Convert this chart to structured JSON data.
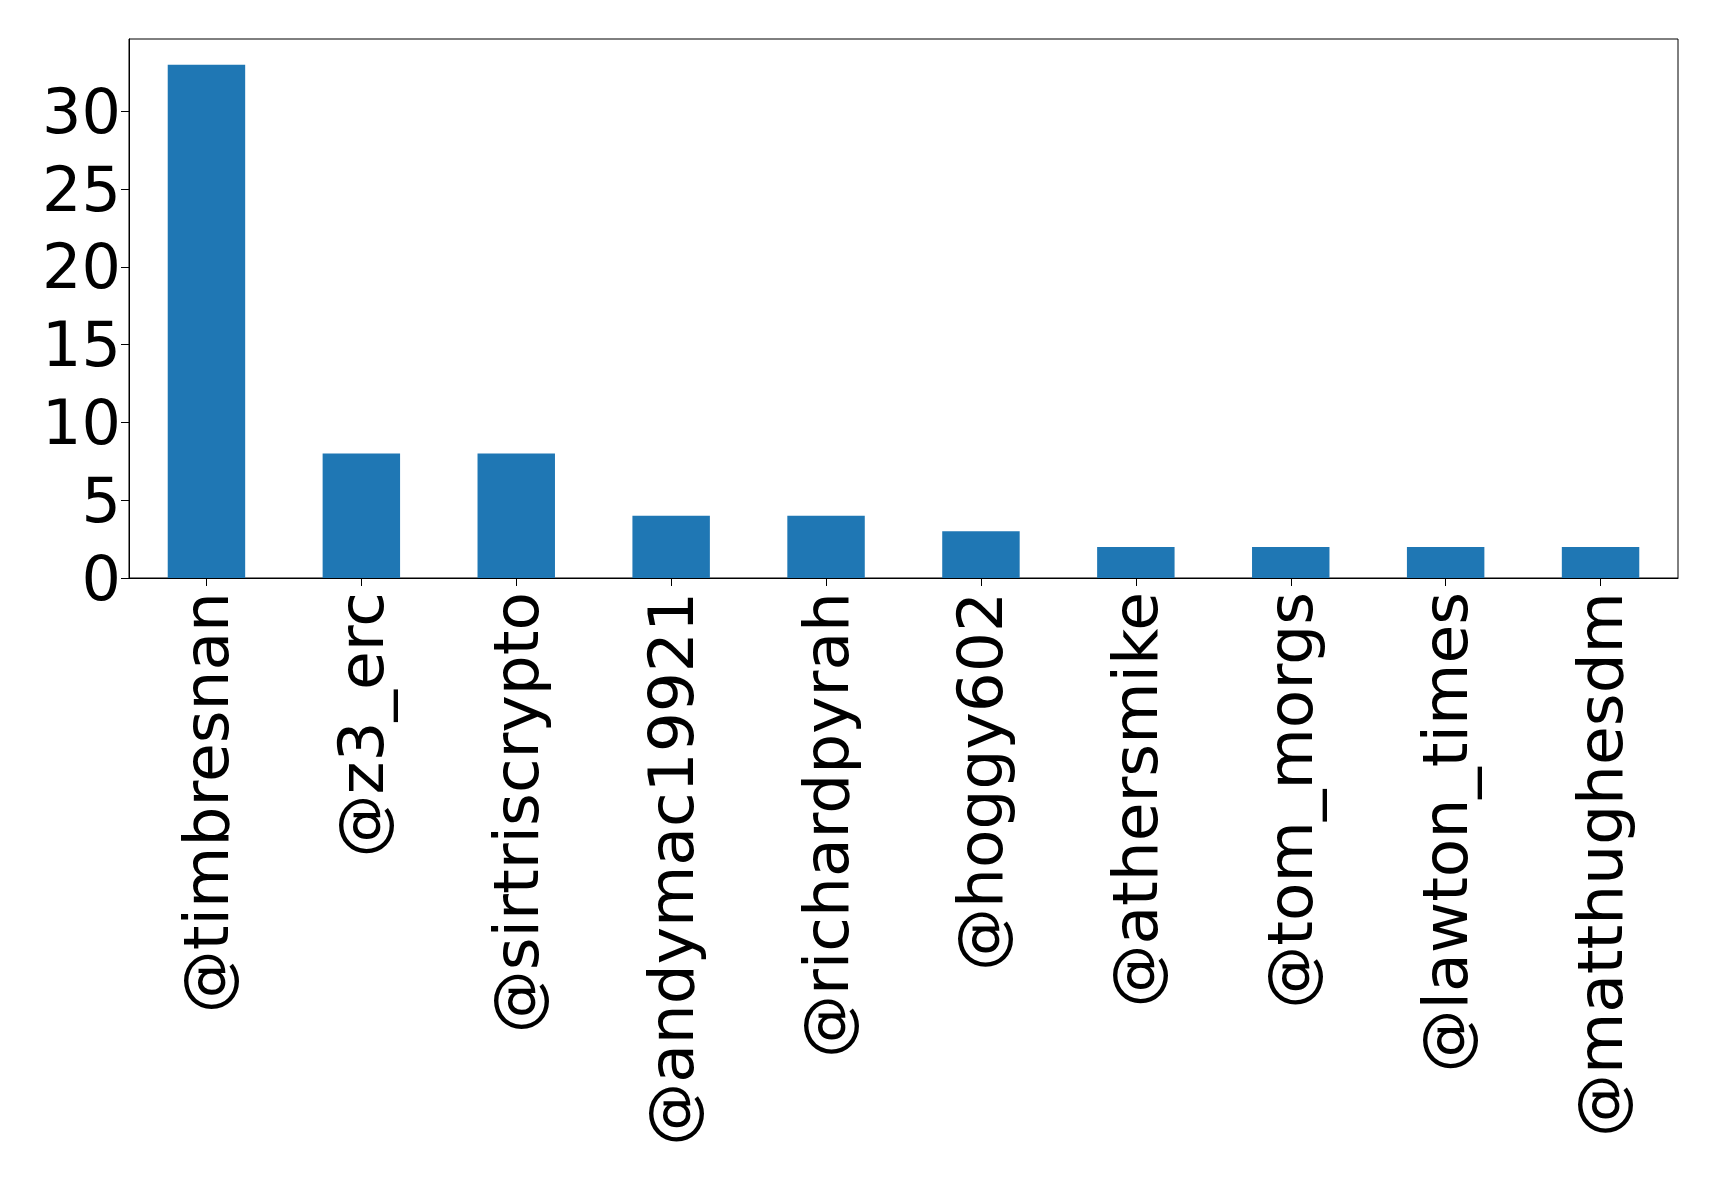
{
  "chart_data": {
    "type": "bar",
    "categories": [
      "@timbresnan",
      "@z3_erc",
      "@sirtriscrypto",
      "@andymac19921",
      "@richardpyrah",
      "@hoggy602",
      "@athersmike",
      "@tom_morgs",
      "@lawton_times",
      "@matthughesdm"
    ],
    "values": [
      33,
      8,
      8,
      4,
      4,
      3,
      2,
      2,
      2,
      2
    ],
    "color": "#1f77b4",
    "ylim": [
      0,
      34.65
    ],
    "yticks": [
      0,
      5,
      10,
      15,
      20,
      25,
      30
    ],
    "grid": false
  }
}
